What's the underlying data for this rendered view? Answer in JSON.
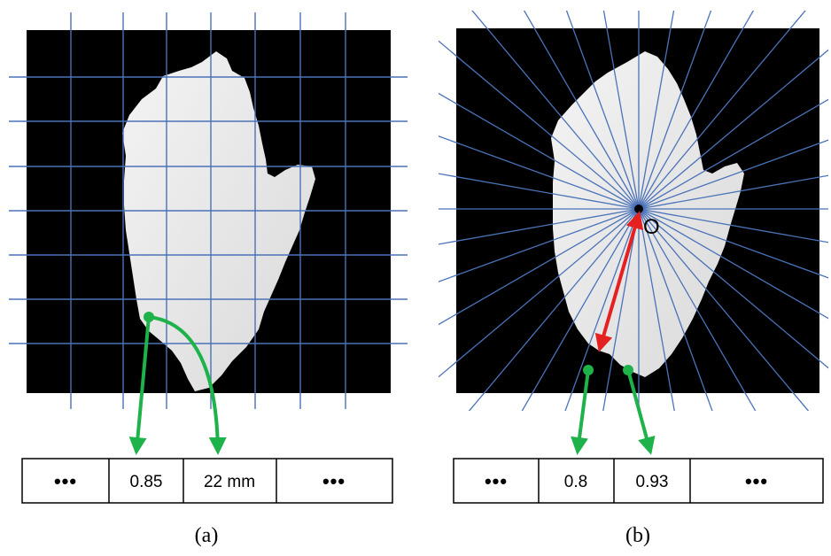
{
  "panel_a": {
    "caption": "(a)",
    "cells": [
      "•••",
      "0.85",
      "22 mm",
      "•••"
    ]
  },
  "panel_b": {
    "caption": "(b)",
    "origin_label": "O",
    "cells": [
      "•••",
      "0.8",
      "0.93",
      "•••"
    ]
  },
  "colors": {
    "background_image": "#000000",
    "grid_line": "#4a72b8",
    "shape_fill": "#e8e8e8",
    "green_arrow": "#1db34a",
    "red_arrow": "#e52020"
  }
}
